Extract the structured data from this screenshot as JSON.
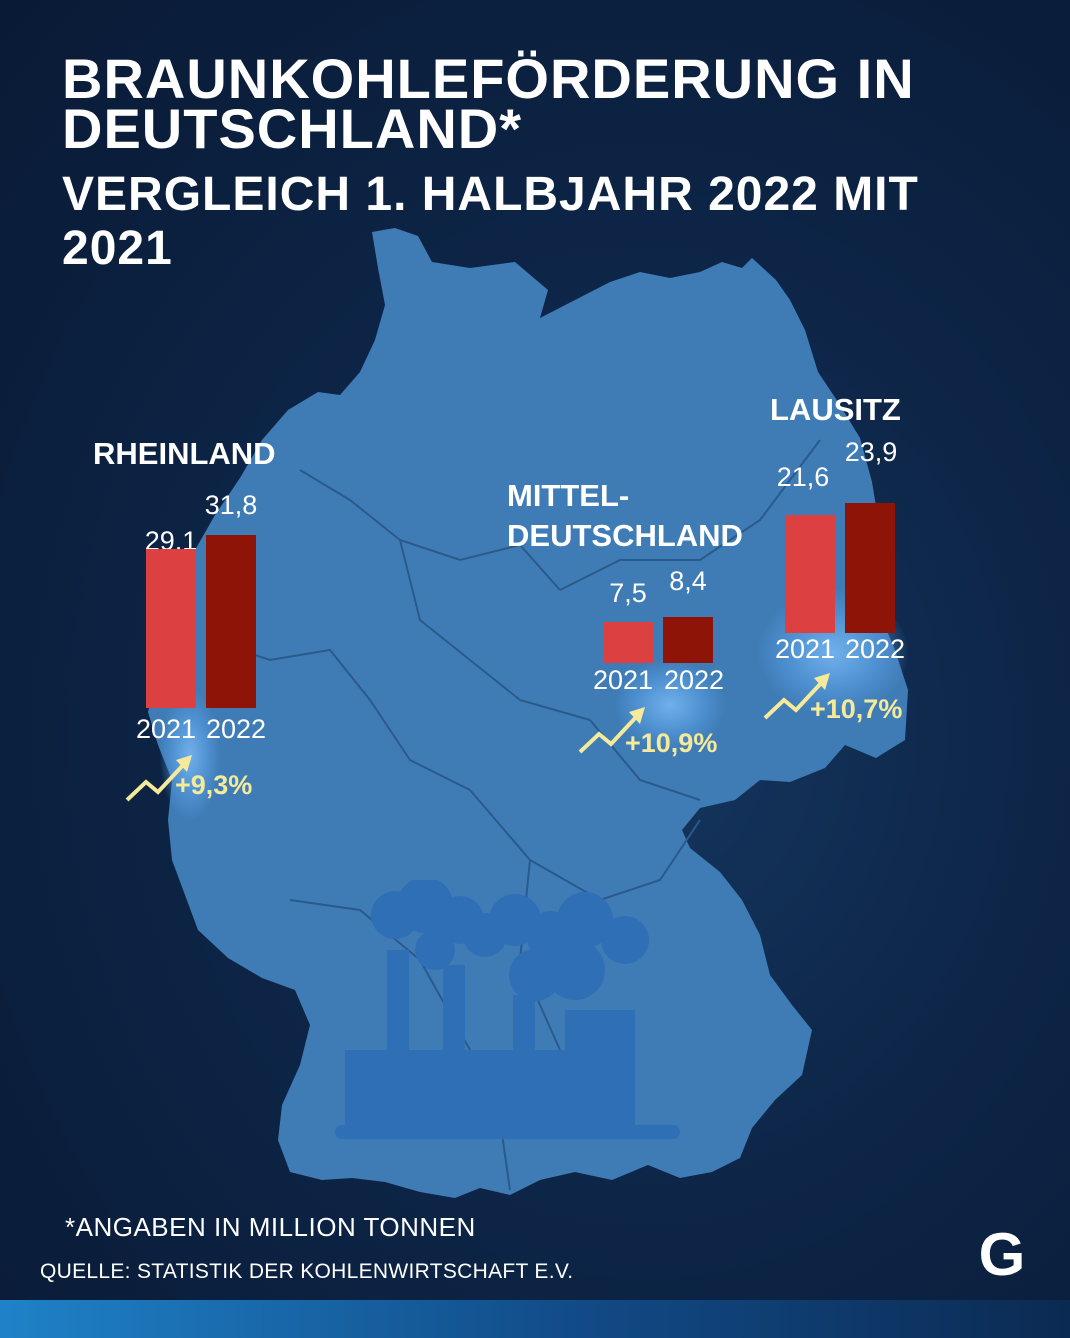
{
  "title": "BRAUNKOHLEFÖRDERUNG IN DEUTSCHLAND*",
  "subtitle": "VERGLEICH 1. HALBJAHR 2022 MIT 2021",
  "footnote": "*ANGABEN IN MILLION TONNEN",
  "source": "QUELLE: STATISTIK DER KOHLENWIRTSCHAFT E.V.",
  "logo_letter": "G",
  "colors": {
    "background": "#0d2547",
    "map": "#3f7cb6",
    "bar_2021": "#dd4040",
    "bar_2022": "#8e1408",
    "change_text": "#f5ea9a"
  },
  "icons": [
    "trend-up-arrow-icon",
    "power-plant-icon",
    "germany-map"
  ],
  "chart_data": {
    "type": "bar",
    "unit": "Million Tonnen",
    "categories": [
      "2021",
      "2022"
    ],
    "groups": [
      {
        "name": "RHEINLAND",
        "values": [
          29.1,
          31.8
        ],
        "labels": [
          "29,1",
          "31,8"
        ],
        "years": [
          "2021",
          "2022"
        ],
        "change": "+9,3%"
      },
      {
        "name": "MITTEL-DEUTSCHLAND",
        "name_lines": [
          "MITTEL-",
          "DEUTSCHLAND"
        ],
        "values": [
          7.5,
          8.4
        ],
        "labels": [
          "7,5",
          "8,4"
        ],
        "years": [
          "2021",
          "2022"
        ],
        "change": "+10,9%"
      },
      {
        "name": "LAUSITZ",
        "values": [
          21.6,
          23.9
        ],
        "labels": [
          "21,6",
          "23,9"
        ],
        "years": [
          "2021",
          "2022"
        ],
        "change": "+10,7%"
      }
    ]
  }
}
